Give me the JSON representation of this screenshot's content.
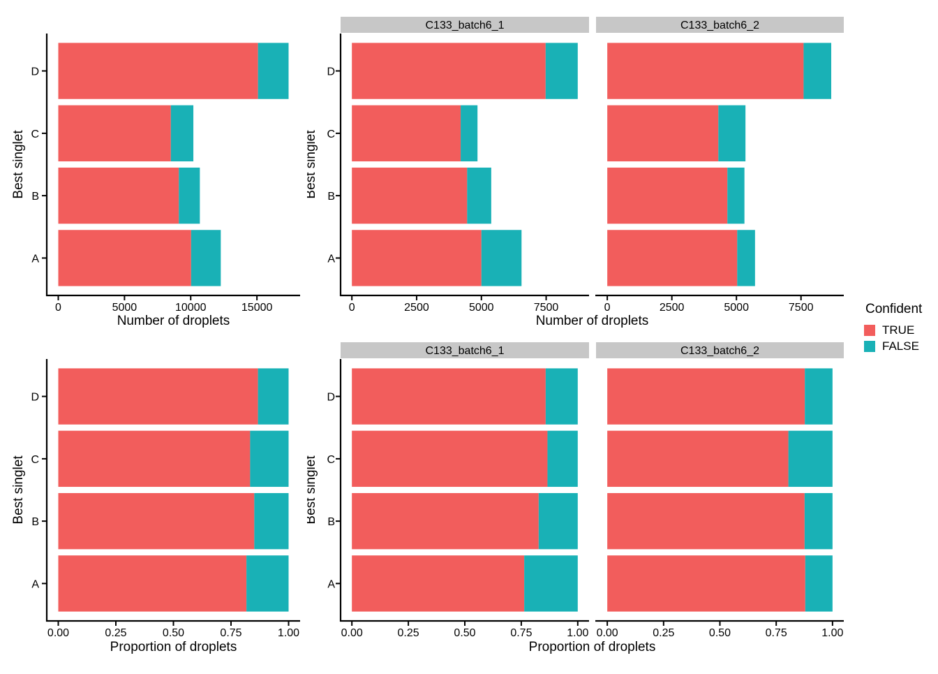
{
  "figure": {
    "background": "#FFFFFF",
    "text_color": "#000000",
    "strip_background": "#C7C7C7",
    "accent_true": "#F25D5C",
    "accent_false": "#19B1B6"
  },
  "legend": {
    "title": "Confident",
    "items": [
      {
        "label": "TRUE",
        "color": "#F25D5C"
      },
      {
        "label": "FALSE",
        "color": "#19B1B6"
      }
    ]
  },
  "chart_data": [
    {
      "name": "droplet-counts-combined",
      "type": "bar",
      "orientation": "horizontal",
      "stacked": true,
      "legend_position": "right",
      "grid": false,
      "xlabel": "Number of droplets",
      "ylabel": "Best singlet",
      "series_order": [
        "TRUE",
        "FALSE"
      ],
      "xticks": [
        0,
        5000,
        10000,
        15000
      ],
      "xtick_labels": [
        "0",
        "5000",
        "10000",
        "15000"
      ],
      "xlim": [
        0,
        17390
      ],
      "panels": [
        {
          "strip": null,
          "rows": [
            {
              "category": "D",
              "TRUE": 15080,
              "FALSE": 2310
            },
            {
              "category": "C",
              "TRUE": 8500,
              "FALSE": 1700
            },
            {
              "category": "B",
              "TRUE": 9100,
              "FALSE": 1590
            },
            {
              "category": "A",
              "TRUE": 10030,
              "FALSE": 2240
            }
          ]
        }
      ]
    },
    {
      "name": "droplet-counts-by-sample",
      "type": "bar",
      "orientation": "horizontal",
      "stacked": true,
      "grid": false,
      "xlabel": "Number of droplets",
      "ylabel": "Best singlet",
      "series_order": [
        "TRUE",
        "FALSE"
      ],
      "xticks": [
        0,
        2500,
        5000,
        7500
      ],
      "xtick_labels": [
        "0",
        "2500",
        "5000",
        "7500"
      ],
      "xlim": [
        0,
        8720
      ],
      "panels": [
        {
          "strip": "C133_batch6_1",
          "rows": [
            {
              "category": "D",
              "TRUE": 7480,
              "FALSE": 1240
            },
            {
              "category": "C",
              "TRUE": 4200,
              "FALSE": 650
            },
            {
              "category": "B",
              "TRUE": 4450,
              "FALSE": 930
            },
            {
              "category": "A",
              "TRUE": 5000,
              "FALSE": 1550
            }
          ]
        },
        {
          "strip": "C133_batch6_2",
          "rows": [
            {
              "category": "D",
              "TRUE": 7600,
              "FALSE": 1070
            },
            {
              "category": "C",
              "TRUE": 4300,
              "FALSE": 1050
            },
            {
              "category": "B",
              "TRUE": 4650,
              "FALSE": 660
            },
            {
              "category": "A",
              "TRUE": 5030,
              "FALSE": 690
            }
          ]
        }
      ]
    },
    {
      "name": "droplet-proportions-combined",
      "type": "bar",
      "orientation": "horizontal",
      "stacked": true,
      "grid": false,
      "xlabel": "Proportion of droplets",
      "ylabel": "Best singlet",
      "series_order": [
        "TRUE",
        "FALSE"
      ],
      "xticks": [
        0,
        0.25,
        0.5,
        0.75,
        1
      ],
      "xtick_labels": [
        "0.00",
        "0.25",
        "0.50",
        "0.75",
        "1.00"
      ],
      "xlim": [
        0,
        1
      ],
      "panels": [
        {
          "strip": null,
          "rows": [
            {
              "category": "D",
              "TRUE": 0.867,
              "FALSE": 0.133
            },
            {
              "category": "C",
              "TRUE": 0.833,
              "FALSE": 0.167
            },
            {
              "category": "B",
              "TRUE": 0.851,
              "FALSE": 0.149
            },
            {
              "category": "A",
              "TRUE": 0.817,
              "FALSE": 0.183
            }
          ]
        }
      ]
    },
    {
      "name": "droplet-proportions-by-sample",
      "type": "bar",
      "orientation": "horizontal",
      "stacked": true,
      "grid": false,
      "xlabel": "Proportion of droplets",
      "ylabel": "Best singlet",
      "series_order": [
        "TRUE",
        "FALSE"
      ],
      "xticks": [
        0,
        0.25,
        0.5,
        0.75,
        1
      ],
      "xtick_labels": [
        "0.00",
        "0.25",
        "0.50",
        "0.75",
        "1.00"
      ],
      "xlim": [
        0,
        1
      ],
      "panels": [
        {
          "strip": "C133_batch6_1",
          "rows": [
            {
              "category": "D",
              "TRUE": 0.858,
              "FALSE": 0.142
            },
            {
              "category": "C",
              "TRUE": 0.866,
              "FALSE": 0.134
            },
            {
              "category": "B",
              "TRUE": 0.827,
              "FALSE": 0.173
            },
            {
              "category": "A",
              "TRUE": 0.763,
              "FALSE": 0.237
            }
          ]
        },
        {
          "strip": "C133_batch6_2",
          "rows": [
            {
              "category": "D",
              "TRUE": 0.877,
              "FALSE": 0.123
            },
            {
              "category": "C",
              "TRUE": 0.804,
              "FALSE": 0.196
            },
            {
              "category": "B",
              "TRUE": 0.876,
              "FALSE": 0.124
            },
            {
              "category": "A",
              "TRUE": 0.879,
              "FALSE": 0.121
            }
          ]
        }
      ]
    }
  ]
}
